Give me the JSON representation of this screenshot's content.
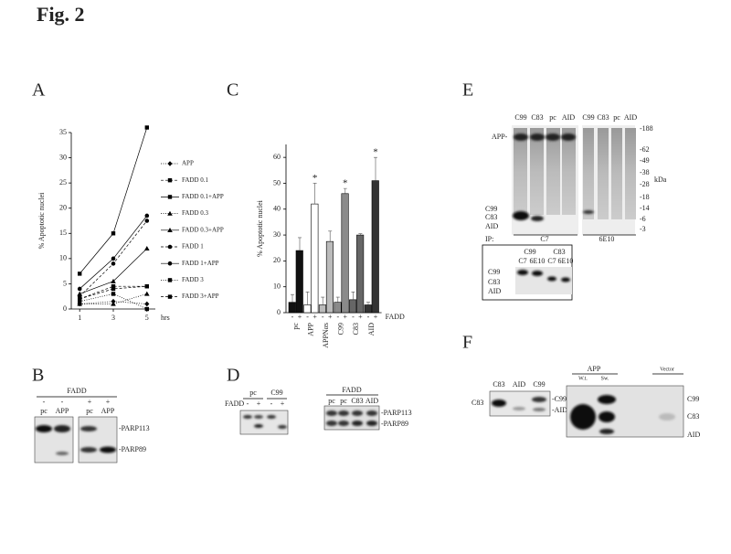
{
  "figure_title": "Fig. 2",
  "panel_labels": [
    "A",
    "B",
    "C",
    "D",
    "E",
    "F"
  ],
  "chart_data": [
    {
      "type": "line",
      "y_label": "% Apoptotic nuclei",
      "x_label": "hrs",
      "x": [
        1,
        3,
        5
      ],
      "xlim": [
        0.5,
        5.5
      ],
      "xticks": [
        1,
        3,
        5
      ],
      "ylim": [
        0,
        35
      ],
      "yticks": [
        0,
        5,
        10,
        15,
        20,
        25,
        30,
        35
      ],
      "legend": "right",
      "series": [
        {
          "name": "APP",
          "color": "#000000",
          "marker": "diamond",
          "dash": "dotted",
          "values": [
            1,
            1.5,
            1
          ]
        },
        {
          "name": "FADD 0.1",
          "color": "#000000",
          "marker": "square",
          "dash": "dashed",
          "values": [
            2,
            4.5,
            4.5
          ]
        },
        {
          "name": "FADD 0.1+APP",
          "color": "#000000",
          "marker": "square",
          "dash": "solid",
          "values": [
            7,
            15,
            36
          ]
        },
        {
          "name": "FADD 0.3",
          "color": "#000000",
          "marker": "triangle",
          "dash": "dotted",
          "values": [
            1,
            1,
            3
          ]
        },
        {
          "name": "FADD 0.3+APP",
          "color": "#000000",
          "marker": "triangle",
          "dash": "solid",
          "values": [
            3,
            5.5,
            12
          ]
        },
        {
          "name": "FADD 1",
          "color": "#000000",
          "marker": "circle",
          "dash": "dashed",
          "values": [
            2.5,
            9,
            17.5
          ]
        },
        {
          "name": "FADD 1+APP",
          "color": "#000000",
          "marker": "circle",
          "dash": "solid",
          "values": [
            4,
            10,
            18.5
          ]
        },
        {
          "name": "FADD 3",
          "color": "#000000",
          "marker": "square",
          "dash": "dotted",
          "values": [
            1.5,
            3,
            0
          ]
        },
        {
          "name": "FADD 3+APP",
          "color": "#000000",
          "marker": "square",
          "dash": "dashed",
          "values": [
            2,
            4,
            4.5
          ]
        }
      ]
    },
    {
      "type": "bar",
      "y_label": "% Apoptotic nuclei",
      "x_label": "FADD",
      "categories": [
        "pc",
        "APP",
        "APPNαs",
        "C99",
        "C83",
        "AID"
      ],
      "colors": [
        "#111111",
        "#ffffff",
        "#bbbbbb",
        "#8a8a8a",
        "#666666",
        "#333333"
      ],
      "ylim": [
        0,
        65
      ],
      "yticks": [
        0,
        10,
        20,
        30,
        40,
        50,
        60
      ],
      "series": [
        {
          "name": "-",
          "values": [
            4,
            3,
            3,
            4,
            5,
            3
          ],
          "errors": [
            3,
            5,
            3,
            2,
            3,
            1
          ]
        },
        {
          "name": "+",
          "values": [
            24,
            42,
            27.5,
            46,
            30,
            51
          ],
          "errors": [
            5,
            8,
            4,
            2,
            0.5,
            9
          ],
          "annotations": [
            null,
            "*",
            null,
            "*",
            null,
            "*"
          ]
        }
      ]
    }
  ],
  "blot_B": {
    "treatment": "FADD",
    "signs": [
      "-",
      "-",
      "+",
      "+"
    ],
    "lanes": [
      "pc",
      "APP",
      "pc",
      "APP"
    ],
    "bands": [
      "-PARP113",
      "-PARP89"
    ]
  },
  "blot_D": {
    "group_labels": [
      "pc",
      "C99"
    ],
    "treatment": "FADD",
    "signs": [
      "-",
      "+",
      "-",
      "+"
    ],
    "treatment2": "FADD",
    "lanes": [
      "pc",
      "pc",
      "C83",
      "AID"
    ],
    "bands": [
      "-PARP113",
      "-PARP89"
    ]
  },
  "blot_E": {
    "lanes_left": [
      "C99",
      "C83",
      "pc",
      "AID"
    ],
    "lanes_right": [
      "C99",
      "C83",
      "pc",
      "AID"
    ],
    "app_label": "APP-",
    "markers": [
      "-188",
      "-62",
      "-49",
      "-38",
      "-28",
      "-18",
      "-14",
      "-6",
      "-3"
    ],
    "unit": "kDa",
    "bands": [
      "C99",
      "C83",
      "AID"
    ],
    "ip_label": "IP:",
    "ip_antibodies": [
      "C7",
      "6E10"
    ],
    "inset": {
      "groups": [
        "C99",
        "C83"
      ],
      "antibodies": [
        "C7",
        "6E10",
        "C7",
        "6E10"
      ],
      "bands": [
        "C99",
        "C83",
        "AID"
      ]
    }
  },
  "blot_F": {
    "lanes": [
      "C83",
      "AID",
      "C99"
    ],
    "left_label": "C83",
    "bands": [
      "-C99",
      "-AID"
    ],
    "group": "APP",
    "sublanes": [
      "W.t.",
      "Sw."
    ],
    "vector": "Vector",
    "bands_right": [
      "C99",
      "C83",
      "AID"
    ]
  }
}
